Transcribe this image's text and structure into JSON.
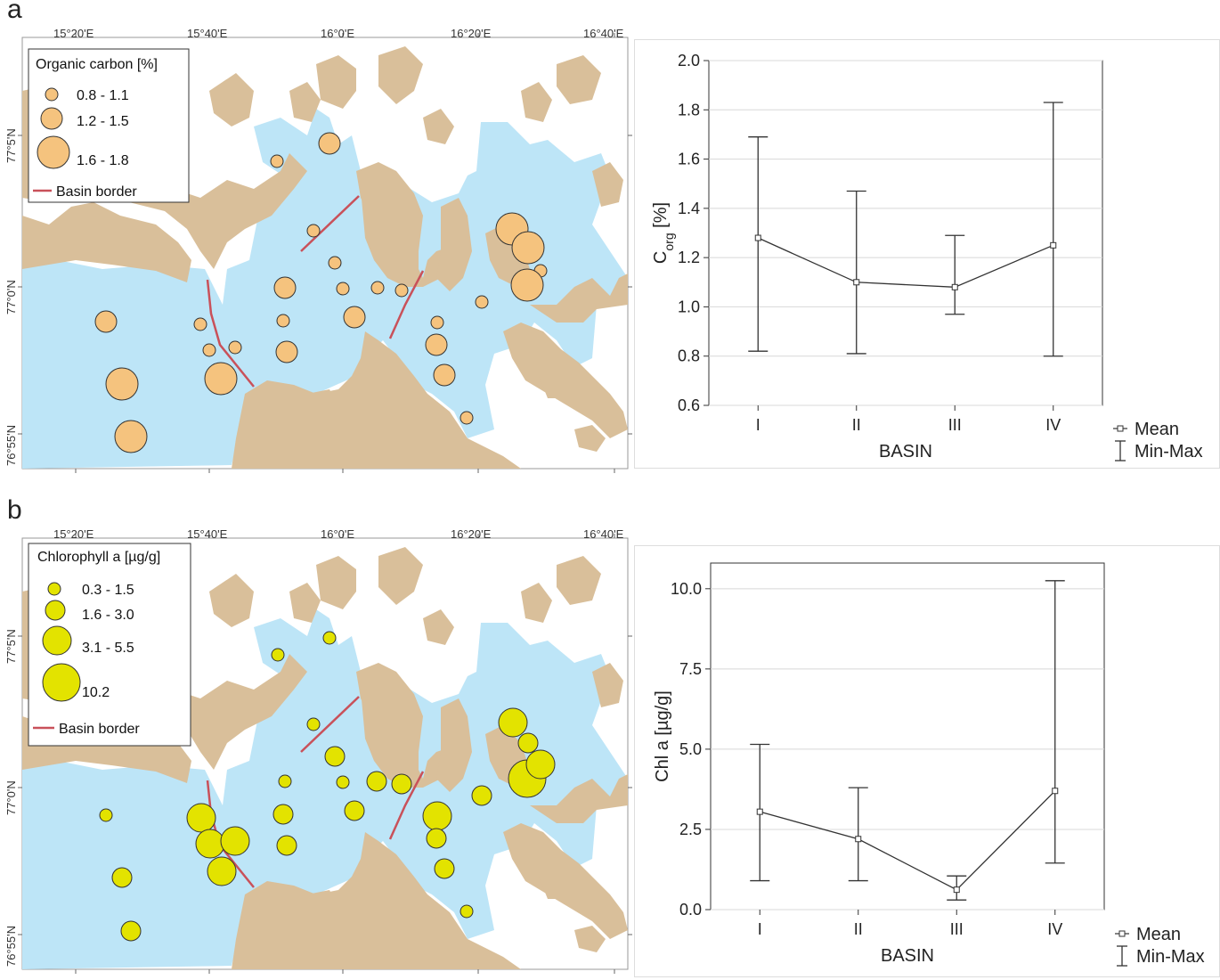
{
  "panels": [
    {
      "letter": "a",
      "map": {
        "lon_labels": [
          "15°20'E",
          "15°40'E",
          "16°0'E",
          "16°20'E",
          "16°40'E"
        ],
        "lat_labels": [
          "77°5'N",
          "77°0'N",
          "76°55'N"
        ],
        "legend": {
          "title": "Organic carbon [%]",
          "classes": [
            "0.8 - 1.1",
            "1.2 - 1.5",
            "1.6 - 1.8"
          ],
          "border_label": "Basin border"
        },
        "colors": {
          "sea": "#bde5f7",
          "land": "#d9bf9a",
          "symbol": "#f5c37e",
          "border": "#c9515a"
        }
      },
      "chart_data": {
        "type": "line",
        "categories": [
          "I",
          "II",
          "III",
          "IV"
        ],
        "series": [
          {
            "name": "Mean",
            "values": [
              1.28,
              1.1,
              1.08,
              1.25
            ]
          },
          {
            "name": "Min-Max",
            "min": [
              0.82,
              0.81,
              0.97,
              0.8
            ],
            "max": [
              1.69,
              1.47,
              1.29,
              1.83
            ]
          }
        ],
        "ylabel_main": "C",
        "ylabel_sub": "org",
        "ylabel_unit": " [%]",
        "xlabel": "BASIN",
        "ylim": [
          0.6,
          2.0
        ],
        "yticks": [
          0.6,
          0.8,
          1.0,
          1.2,
          1.4,
          1.6,
          1.8,
          2.0
        ],
        "ytick_labels": [
          "0.6",
          "0.8",
          "1.0",
          "1.2",
          "1.4",
          "1.6",
          "1.8",
          "2.0"
        ],
        "grid": true,
        "legend": [
          "Mean",
          "Min-Max"
        ]
      }
    },
    {
      "letter": "b",
      "map": {
        "lon_labels": [
          "15°20'E",
          "15°40'E",
          "16°0'E",
          "16°20'E",
          "16°40'E"
        ],
        "lat_labels": [
          "77°5'N",
          "77°0'N",
          "76°55'N"
        ],
        "legend": {
          "title": "Chlorophyll a [µg/g]",
          "classes": [
            "0.3 - 1.5",
            "1.6 - 3.0",
            "3.1 - 5.5",
            "10.2"
          ],
          "border_label": "Basin border"
        },
        "colors": {
          "sea": "#bde5f7",
          "land": "#d9bf9a",
          "symbol": "#e3e300",
          "border": "#c9515a"
        }
      },
      "chart_data": {
        "type": "line",
        "categories": [
          "I",
          "II",
          "III",
          "IV"
        ],
        "series": [
          {
            "name": "Mean",
            "values": [
              3.05,
              2.2,
              0.62,
              3.7
            ]
          },
          {
            "name": "Min-Max",
            "min": [
              0.9,
              0.9,
              0.3,
              1.45
            ],
            "max": [
              5.15,
              3.8,
              1.05,
              10.25
            ]
          }
        ],
        "ylabel": "Chl a [µg/g]",
        "xlabel": "BASIN",
        "ylim": [
          0,
          10.8
        ],
        "yticks": [
          0,
          2.5,
          5.0,
          7.5,
          10.0
        ],
        "ytick_labels": [
          "0.0",
          "2.5",
          "5.0",
          "7.5",
          "10.0"
        ],
        "grid": true,
        "legend": [
          "Mean",
          "Min-Max"
        ]
      }
    }
  ]
}
